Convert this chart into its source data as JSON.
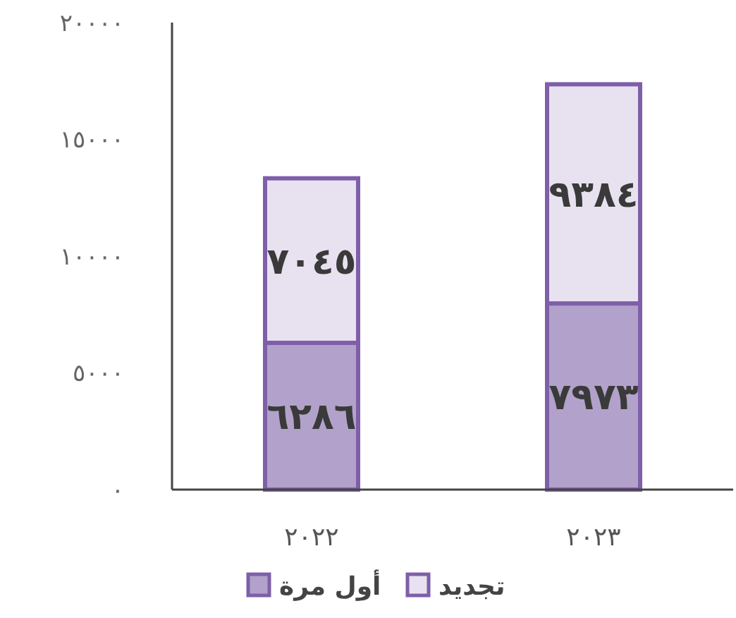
{
  "chart_data": {
    "type": "bar",
    "stacked": true,
    "categories": [
      "٢٠٢٢",
      "٢٠٢٣"
    ],
    "series": [
      {
        "name": "أول مرة",
        "color": "#b2a2cb",
        "values": [
          6286,
          7973
        ],
        "value_labels": [
          "٦٢٨٦",
          "٧٩٧٣"
        ]
      },
      {
        "name": "تجديد",
        "color": "#e8e2f0",
        "values": [
          7045,
          9384
        ],
        "value_labels": [
          "٧٠٤٥",
          "٩٣٨٤"
        ]
      }
    ],
    "ylim": [
      0,
      20000
    ],
    "yticks": [
      {
        "value": 0,
        "label": "٠"
      },
      {
        "value": 5000,
        "label": "٥٠٠٠"
      },
      {
        "value": 10000,
        "label": "١٠٠٠٠"
      },
      {
        "value": 15000,
        "label": "١٥٠٠٠"
      },
      {
        "value": 20000,
        "label": "٢٠٠٠٠"
      }
    ],
    "grid": false,
    "legend": "bottom"
  }
}
